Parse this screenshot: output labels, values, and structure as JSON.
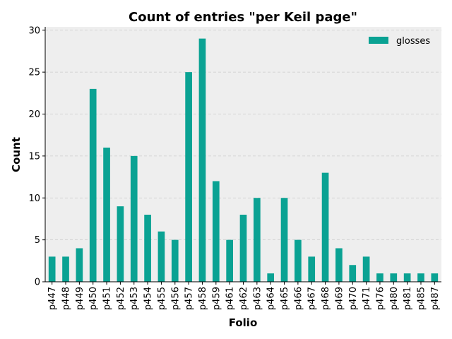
{
  "chart_data": {
    "type": "bar",
    "title": "Count of entries \"per Keil page\"",
    "xlabel": "Folio",
    "ylabel": "Count",
    "categories": [
      "p447",
      "p448",
      "p449",
      "p450",
      "p451",
      "p452",
      "p453",
      "p454",
      "p455",
      "p456",
      "p457",
      "p458",
      "p459",
      "p461",
      "p462",
      "p463",
      "p464",
      "p465",
      "p466",
      "p467",
      "p468",
      "p469",
      "p470",
      "p471",
      "p476",
      "p480",
      "p481",
      "p485",
      "p487"
    ],
    "series": [
      {
        "name": "glosses",
        "values": [
          3,
          3,
          4,
          23,
          16,
          9,
          15,
          8,
          6,
          5,
          25,
          29,
          12,
          5,
          8,
          10,
          1,
          10,
          5,
          3,
          13,
          4,
          2,
          3,
          1,
          1,
          1,
          1,
          1
        ]
      }
    ],
    "ylim": [
      0,
      30.4
    ],
    "yticks": [
      0,
      5,
      10,
      15,
      20,
      25,
      30
    ],
    "grid": true,
    "legend_position": "top-right",
    "colors": {
      "bar": "#0aa293",
      "plot_background": "#eeeeee",
      "grid": "#cccccc"
    }
  }
}
